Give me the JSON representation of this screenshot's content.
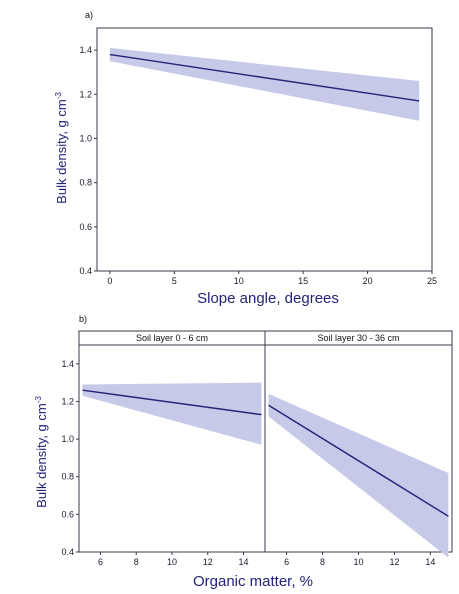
{
  "chart_data": [
    {
      "panel": "a)",
      "type": "line",
      "xlabel": "Slope angle, degrees",
      "ylabel_main": "Bulk density, g cm",
      "ylabel_sup": "-3",
      "xlim": [
        -1,
        25
      ],
      "ylim": [
        0.4,
        1.5
      ],
      "xticks": [
        0,
        5,
        10,
        15,
        20,
        25
      ],
      "xtick_labels": [
        "0",
        "5",
        "10",
        "15",
        "20",
        "25"
      ],
      "yticks": [
        0.4,
        0.6,
        0.8,
        1.0,
        1.2,
        1.4
      ],
      "ytick_labels": [
        "0.4",
        "0.6",
        "0.8",
        "1.0",
        "1.2",
        "1.4"
      ],
      "grid": false,
      "fit": {
        "x": [
          0,
          24
        ],
        "y": [
          1.38,
          1.17
        ]
      },
      "band": {
        "x": [
          0,
          24
        ],
        "lower": [
          1.35,
          1.08
        ],
        "upper": [
          1.41,
          1.26
        ]
      }
    },
    {
      "panel": "b)",
      "type": "line",
      "xlabel": "Organic matter, %",
      "ylabel_main": "Bulk density, g cm",
      "ylabel_sup": "-3",
      "ylim": [
        0.4,
        1.5
      ],
      "yticks": [
        0.4,
        0.6,
        0.8,
        1.0,
        1.2,
        1.4
      ],
      "ytick_labels": [
        "0.4",
        "0.6",
        "0.8",
        "1.0",
        "1.2",
        "1.4"
      ],
      "grid": false,
      "facets": [
        {
          "strip": "Soil layer 0 - 6 cm",
          "xlim": [
            4.8,
            15.2
          ],
          "xticks": [
            6,
            8,
            10,
            12,
            14
          ],
          "xtick_labels": [
            "6",
            "8",
            "10",
            "12",
            "14"
          ],
          "fit": {
            "x": [
              5,
              15
            ],
            "y": [
              1.26,
              1.13
            ]
          },
          "band": {
            "x": [
              5,
              15
            ],
            "lower": [
              1.23,
              0.97
            ],
            "upper": [
              1.29,
              1.3
            ]
          }
        },
        {
          "strip": "Soil layer 30 - 36 cm",
          "xlim": [
            4.8,
            15.2
          ],
          "xticks": [
            6,
            8,
            10,
            12,
            14
          ],
          "xtick_labels": [
            "6",
            "8",
            "10",
            "12",
            "14"
          ],
          "fit": {
            "x": [
              5,
              15
            ],
            "y": [
              1.18,
              0.59
            ]
          },
          "band": {
            "x": [
              5,
              15
            ],
            "lower": [
              1.12,
              0.37
            ],
            "upper": [
              1.24,
              0.82
            ]
          }
        }
      ]
    }
  ],
  "colors": {
    "line": "#23237a",
    "band": "#c6c9e8",
    "axis": "#3a3a4a",
    "label": "#23237a"
  }
}
